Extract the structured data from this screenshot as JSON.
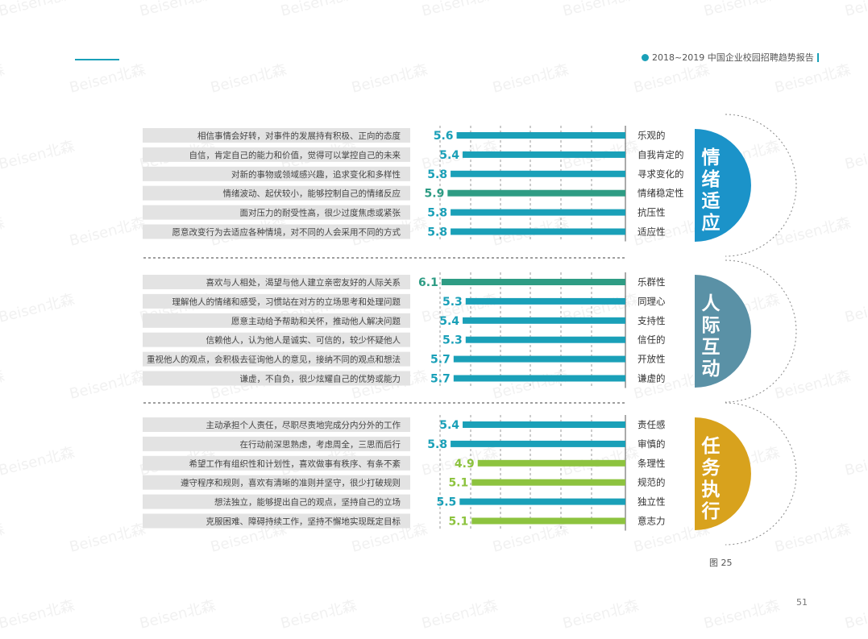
{
  "header": {
    "report_title": "2018~2019 中国企业校园招聘趋势报告"
  },
  "footer": {
    "figure_label": "图 25",
    "page_number": "51"
  },
  "watermark": {
    "text": "Beisen北森"
  },
  "colors": {
    "teal": "#1aa0b8",
    "dark_green": "#2e9c84",
    "lime": "#8dc33f",
    "label_bg": "#e3e3e3",
    "circle_blue": "#1b93c9",
    "circle_slate": "#5a91a6",
    "circle_gold": "#d8a21d"
  },
  "chart_data": {
    "type": "bar",
    "orientation": "horizontal",
    "direction": "right-to-left",
    "title": "",
    "xlabel": "",
    "ylabel": "",
    "xlim": [
      0,
      6.3
    ],
    "grid": true,
    "groups": [
      {
        "name": "情绪适应",
        "circle_color": "#1b93c9",
        "items": [
          {
            "trait": "乐观的",
            "description": "相信事情会好转，对事件的发展持有积极、正向的态度",
            "value": 5.6,
            "label": "5.6",
            "color": "#1aa0b8"
          },
          {
            "trait": "自我肯定的",
            "description": "自信，肯定自己的能力和价值，觉得可以掌控自己的未来",
            "value": 5.4,
            "label": "5.4",
            "color": "#1aa0b8"
          },
          {
            "trait": "寻求变化的",
            "description": "对新的事物或领域感兴趣，追求变化和多样性",
            "value": 5.8,
            "label": "5.8",
            "color": "#1aa0b8"
          },
          {
            "trait": "情绪稳定性",
            "description": "情绪波动、起伏较小，能够控制自己的情绪反应",
            "value": 5.9,
            "label": "5.9",
            "color": "#2e9c84"
          },
          {
            "trait": "抗压性",
            "description": "面对压力的耐受性高，很少过度焦虑或紧张",
            "value": 5.8,
            "label": "5.8",
            "color": "#1aa0b8"
          },
          {
            "trait": "适应性",
            "description": "愿意改变行为去适应各种情境，对不同的人会采用不同的方式",
            "value": 5.8,
            "label": "5.8",
            "color": "#1aa0b8"
          }
        ]
      },
      {
        "name": "人际互动",
        "circle_color": "#5a91a6",
        "items": [
          {
            "trait": "乐群性",
            "description": "喜欢与人相处，渴望与他人建立亲密友好的人际关系",
            "value": 6.1,
            "label": "6.1",
            "color": "#2e9c84"
          },
          {
            "trait": "同理心",
            "description": "理解他人的情绪和感受，习惯站在对方的立场思考和处理问题",
            "value": 5.3,
            "label": "5.3",
            "color": "#1aa0b8"
          },
          {
            "trait": "支持性",
            "description": "愿意主动给予帮助和关怀，推动他人解决问题",
            "value": 5.4,
            "label": "5.4",
            "color": "#1aa0b8"
          },
          {
            "trait": "信任的",
            "description": "信赖他人，认为他人是诚实、可信的，较少怀疑他人",
            "value": 5.3,
            "label": "5.3",
            "color": "#1aa0b8"
          },
          {
            "trait": "开放性",
            "description": "重视他人的观点，会积极去征询他人的意见，接纳不同的观点和想法",
            "value": 5.7,
            "label": "5.7",
            "color": "#1aa0b8"
          },
          {
            "trait": "谦虚的",
            "description": "谦虚，不自负，很少炫耀自己的优势或能力",
            "value": 5.7,
            "label": "5.7",
            "color": "#1aa0b8"
          }
        ]
      },
      {
        "name": "任务执行",
        "circle_color": "#d8a21d",
        "items": [
          {
            "trait": "责任感",
            "description": "主动承担个人责任，尽职尽责地完成分内分外的工作",
            "value": 5.4,
            "label": "5.4",
            "color": "#1aa0b8"
          },
          {
            "trait": "审慎的",
            "description": "在行动前深思熟虑，考虑周全，三思而后行",
            "value": 5.8,
            "label": "5.8",
            "color": "#1aa0b8"
          },
          {
            "trait": "条理性",
            "description": "希望工作有组织性和计划性，喜欢做事有秩序、有条不紊",
            "value": 4.9,
            "label": "4.9",
            "color": "#8dc33f"
          },
          {
            "trait": "规范的",
            "description": "遵守程序和规则，喜欢有清晰的准则并坚守，很少打破规则",
            "value": 5.1,
            "label": "5.1",
            "color": "#8dc33f"
          },
          {
            "trait": "独立性",
            "description": "想法独立，能够提出自己的观点，坚持自己的立场",
            "value": 5.5,
            "label": "5.5",
            "color": "#1aa0b8"
          },
          {
            "trait": "意志力",
            "description": "克服困难、障碍持续工作，坚持不懈地实现既定目标",
            "value": 5.1,
            "label": "5.1",
            "color": "#8dc33f"
          }
        ]
      }
    ]
  }
}
